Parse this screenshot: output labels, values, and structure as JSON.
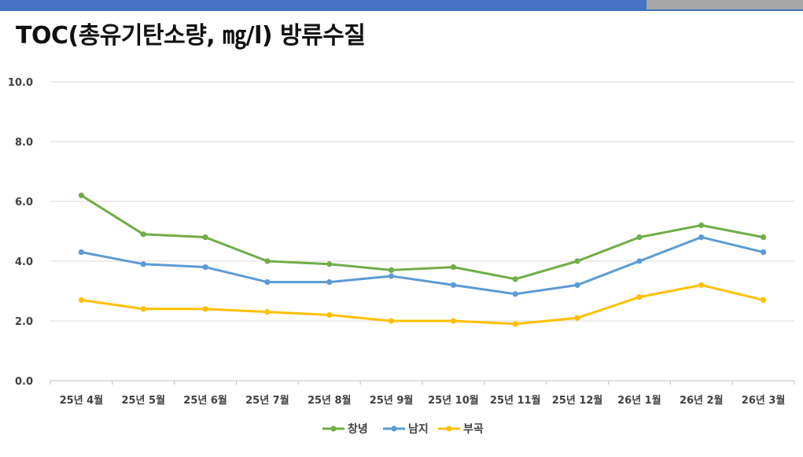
{
  "title": "TOC(총유기탄소량, ㎎/l) 방류수질",
  "colors": {
    "header_blue": "#4472c4",
    "header_gray": "#a6a6a6"
  },
  "chart_data": {
    "type": "line",
    "title": "TOC(총유기탄소량, ㎎/l) 방류수질",
    "xlabel": "",
    "ylabel": "",
    "categories": [
      "25년 4월",
      "25년 5월",
      "25년 6월",
      "25년 7월",
      "25년 8월",
      "25년 9월",
      "25년 10월",
      "25년 11월",
      "25년 12월",
      "26년 1월",
      "26년 2월",
      "26년 3월"
    ],
    "ylim": [
      0,
      10
    ],
    "yticks": [
      "0.0",
      "2.0",
      "4.0",
      "6.0",
      "8.0",
      "10.0"
    ],
    "grid": true,
    "legend_position": "bottom",
    "series": [
      {
        "name": "창녕",
        "color": "#70ad47",
        "values": [
          6.2,
          4.9,
          4.8,
          4.0,
          3.9,
          3.7,
          3.8,
          3.4,
          4.0,
          4.8,
          5.2,
          4.8
        ]
      },
      {
        "name": "남지",
        "color": "#5b9bd5",
        "values": [
          4.3,
          3.9,
          3.8,
          3.3,
          3.3,
          3.5,
          3.2,
          2.9,
          3.2,
          4.0,
          4.8,
          4.3
        ]
      },
      {
        "name": "부곡",
        "color": "#ffc000",
        "values": [
          2.7,
          2.4,
          2.4,
          2.3,
          2.2,
          2.0,
          2.0,
          1.9,
          2.1,
          2.8,
          3.2,
          2.7
        ]
      }
    ]
  }
}
